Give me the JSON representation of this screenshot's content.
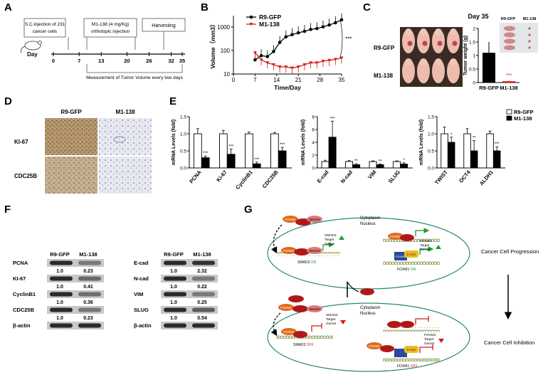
{
  "panel_labels": {
    "A": "A",
    "B": "B",
    "C": "C",
    "D": "D",
    "E": "E",
    "F": "F",
    "G": "G"
  },
  "panel_a": {
    "box1": [
      "S.C.injection of  231",
      "cancer cells"
    ],
    "box2": [
      "M1-138 (4 mg/Kg)",
      "orthotopic injection"
    ],
    "box3": "Harvesting",
    "day_label": "Day",
    "days": [
      "0",
      "7",
      "13",
      "20",
      "26",
      "32",
      "35"
    ],
    "measure_text": "Measurement of Tumor Volume every two days"
  },
  "chart_data": [
    {
      "type": "line",
      "title": "",
      "xlabel": "Time/Day",
      "ylabel": "Volume（mm3）",
      "yscale": "log",
      "ylim": [
        10,
        3000
      ],
      "y_ticks": [
        "10",
        "100",
        "1000"
      ],
      "x_ticks": [
        "0",
        "7",
        "14",
        "21",
        "28",
        "35"
      ],
      "x": [
        7,
        9,
        11,
        13,
        15,
        17,
        19,
        21,
        23,
        25,
        27,
        29,
        31,
        33,
        35
      ],
      "series": [
        {
          "name": "R9-GFP",
          "color": "#000000",
          "values": [
            40,
            60,
            55,
            90,
            220,
            380,
            470,
            560,
            650,
            780,
            850,
            1000,
            1200,
            1500,
            2000
          ]
        },
        {
          "name": "M1-138",
          "color": "#d62020",
          "values": [
            80,
            40,
            30,
            25,
            20,
            20,
            18,
            20,
            25,
            30,
            30,
            35,
            38,
            42,
            48
          ]
        }
      ],
      "significance": "***"
    },
    {
      "type": "bar",
      "title": "Day 35",
      "ylabel": "Tumor weight (g)",
      "categories": [
        "R9-GFP",
        "M1-138"
      ],
      "values": [
        1.1,
        0.05
      ],
      "errors": [
        0.4,
        0.02
      ],
      "ylim": [
        0,
        2.0
      ],
      "y_ticks": [
        "0",
        "0.5",
        "1",
        "1.5",
        "2"
      ],
      "significance": "***"
    },
    {
      "type": "bar",
      "ylabel": "mRNA Levels (fold)",
      "categories": [
        "PCNA",
        "Ki-67",
        "CyclinB1",
        "CDC25B"
      ],
      "ylim": [
        0,
        1.5
      ],
      "y_ticks": [
        "0.0",
        "0.5",
        "1.0",
        "1.5"
      ],
      "series": [
        {
          "name": "R9-GFP",
          "values": [
            1.0,
            1.0,
            1.0,
            1.0
          ],
          "errors": [
            0.15,
            0.1,
            0.05,
            0.04
          ]
        },
        {
          "name": "M1-138",
          "values": [
            0.3,
            0.4,
            0.12,
            0.5
          ],
          "errors": [
            0.05,
            0.15,
            0.05,
            0.1
          ]
        }
      ],
      "significance": [
        "***",
        "***",
        "***",
        "***"
      ]
    },
    {
      "type": "bar",
      "ylabel": "mRNA Levels (fold)",
      "categories": [
        "E-cad",
        "N-cad",
        "VIM",
        "SLUG"
      ],
      "ylim": [
        0,
        8
      ],
      "y_ticks": [
        "0",
        "2",
        "4",
        "6",
        "8"
      ],
      "series": [
        {
          "name": "R9-GFP",
          "values": [
            1.0,
            1.0,
            1.0,
            1.0
          ],
          "errors": [
            0.2,
            0.15,
            0.1,
            0.1
          ]
        },
        {
          "name": "M1-138",
          "values": [
            4.8,
            0.5,
            0.5,
            0.6
          ],
          "errors": [
            2.5,
            0.15,
            0.1,
            0.2
          ]
        }
      ],
      "significance": [
        "***",
        "**",
        "**",
        "*"
      ]
    },
    {
      "type": "bar",
      "ylabel": "mRNA Levels (fold)",
      "categories": [
        "TWIST",
        "OCT4",
        "ALDH1"
      ],
      "ylim": [
        0,
        1.5
      ],
      "y_ticks": [
        "0.0",
        "0.5",
        "1.0",
        "1.5"
      ],
      "series": [
        {
          "name": "R9-GFP",
          "values": [
            1.0,
            1.0,
            1.0
          ],
          "errors": [
            0.2,
            0.15,
            0.08
          ]
        },
        {
          "name": "M1-138",
          "values": [
            0.75,
            0.5,
            0.5
          ],
          "errors": [
            0.15,
            0.3,
            0.12
          ]
        }
      ],
      "significance": [
        "*",
        "**",
        "***"
      ],
      "legend": [
        "R9-GFP",
        "M1-138"
      ]
    }
  ],
  "panel_c": {
    "row1": "R9-GFP",
    "row2": "M1-138",
    "thumb1": "R9-GFP",
    "thumb2": "M1-138"
  },
  "panel_d": {
    "col1": "R9-GFP",
    "col2": "M1-138",
    "row1": "KI-67",
    "row2": "CDC25B"
  },
  "panel_f": {
    "left": {
      "cols": [
        "R9-GFP",
        "M1-138"
      ],
      "rows": [
        {
          "name": "PCNA",
          "v1": "1.0",
          "v2": "0.23"
        },
        {
          "name": "KI-67",
          "v1": "1.0",
          "v2": "0.41"
        },
        {
          "name": "CyclinB1",
          "v1": "1.0",
          "v2": "0.36"
        },
        {
          "name": "CDC25B",
          "v1": "1.0",
          "v2": "0.23"
        }
      ],
      "loading": "β-actin"
    },
    "right": {
      "cols": [
        "R9-GFP",
        "M1-138"
      ],
      "rows": [
        {
          "name": "E-cad",
          "v1": "1.0",
          "v2": "2.32"
        },
        {
          "name": "N-cad",
          "v1": "1.0",
          "v2": "0.22"
        },
        {
          "name": "VIM",
          "v1": "1.0",
          "v2": "0.25"
        },
        {
          "name": "SLUG",
          "v1": "1.0",
          "v2": "0.54"
        }
      ],
      "loading": "β-actin"
    }
  },
  "panel_g": {
    "foxm1": "FOXM1",
    "smad3": "SMAD3",
    "smad4": "SMAD4",
    "m1": "M1-138",
    "bmyb": "B-Myb",
    "cytoplasm": "Cytoplasm",
    "nucleus": "Nucleus",
    "smad_target": [
      "SMAD3",
      "Target",
      "Genes"
    ],
    "foxm1_target": [
      "FOXM1",
      "Target",
      "Genes"
    ],
    "smad_on": "SMAD3",
    "on": "ON",
    "foxm1_on": "FOXM1",
    "off": "OFF",
    "progression": "Cancer  Cell Progression",
    "inhibition": "Cancer Cell Inhibition",
    "colors": {
      "foxm1": "#e06a1e",
      "smad4": "#e07a7a",
      "m1": "#b01818",
      "on": "#1a9c2a",
      "off": "#d41818",
      "arrow": "#1a9c2a",
      "repress": "#d41818"
    }
  }
}
